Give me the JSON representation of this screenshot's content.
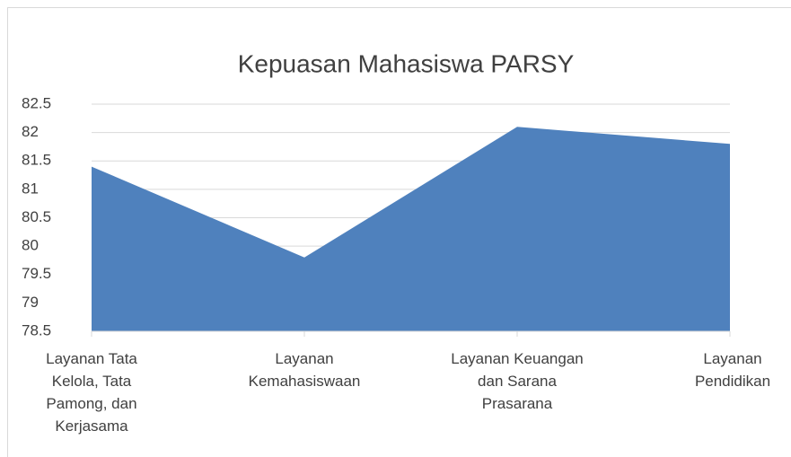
{
  "chart_data": {
    "type": "area",
    "title": "Kepuasan Mahasiswa PARSY",
    "categories": [
      "Layanan Tata Kelola, Tata Pamong, dan Kerjasama",
      "Layanan Kemahasiswaan",
      "Layanan Keuangan dan Sarana Prasarana",
      "Layanan Pendidikan"
    ],
    "values": [
      81.4,
      79.8,
      82.1,
      81.8
    ],
    "color": "#4f81bd",
    "ylim": [
      78.5,
      82.5
    ],
    "yticks": [
      78.5,
      79,
      79.5,
      80,
      80.5,
      81,
      81.5,
      82,
      82.5
    ],
    "grid": true
  }
}
